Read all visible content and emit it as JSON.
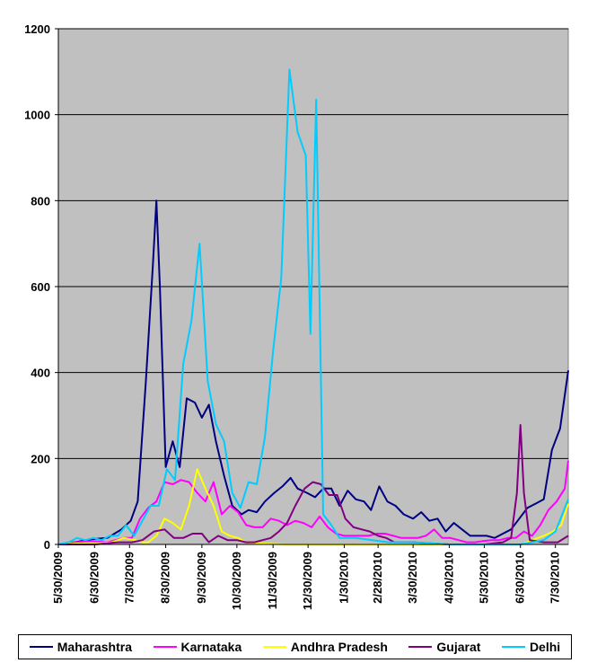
{
  "chart_data": {
    "type": "line",
    "title": "",
    "xlabel": "",
    "ylabel": "",
    "ylim": [
      0,
      1200
    ],
    "yticks": [
      "0",
      "200",
      "400",
      "600",
      "800",
      "1000",
      "1200"
    ],
    "xtick_labels": [
      "5/30/2009",
      "6/30/2009",
      "7/30/2009",
      "8/30/2009",
      "9/30/2009",
      "10/30/2009",
      "11/30/2009",
      "12/30/2009",
      "1/30/2010",
      "2/28/2010",
      "3/30/2010",
      "4/30/2010",
      "5/30/2010",
      "6/30/2010",
      "7/30/2010"
    ],
    "grid": "horizontal",
    "legend_position": "bottom",
    "plot_background": "#C0C0C0",
    "series": [
      {
        "name": "Maharashtra",
        "color": "#000080",
        "points": [
          [
            "2009-05-30",
            0
          ],
          [
            "2009-06-13",
            5
          ],
          [
            "2009-06-27",
            12
          ],
          [
            "2009-07-11",
            15
          ],
          [
            "2009-07-23",
            35
          ],
          [
            "2009-07-31",
            55
          ],
          [
            "2009-08-06",
            100
          ],
          [
            "2009-08-13",
            380
          ],
          [
            "2009-08-19",
            650
          ],
          [
            "2009-08-22",
            800
          ],
          [
            "2009-08-25",
            600
          ],
          [
            "2009-08-30",
            180
          ],
          [
            "2009-09-05",
            240
          ],
          [
            "2009-09-11",
            180
          ],
          [
            "2009-09-17",
            340
          ],
          [
            "2009-09-24",
            330
          ],
          [
            "2009-09-30",
            295
          ],
          [
            "2009-10-06",
            325
          ],
          [
            "2009-10-12",
            240
          ],
          [
            "2009-10-19",
            160
          ],
          [
            "2009-10-26",
            90
          ],
          [
            "2009-11-03",
            70
          ],
          [
            "2009-11-09",
            80
          ],
          [
            "2009-11-16",
            75
          ],
          [
            "2009-11-23",
            100
          ],
          [
            "2009-12-01",
            120
          ],
          [
            "2009-12-08",
            135
          ],
          [
            "2009-12-15",
            155
          ],
          [
            "2009-12-21",
            130
          ],
          [
            "2009-12-29",
            120
          ],
          [
            "2010-01-05",
            110
          ],
          [
            "2010-01-12",
            130
          ],
          [
            "2010-01-19",
            130
          ],
          [
            "2010-01-26",
            90
          ],
          [
            "2010-02-02",
            125
          ],
          [
            "2010-02-09",
            105
          ],
          [
            "2010-02-16",
            100
          ],
          [
            "2010-02-22",
            80
          ],
          [
            "2010-03-01",
            135
          ],
          [
            "2010-03-08",
            100
          ],
          [
            "2010-03-15",
            90
          ],
          [
            "2010-03-22",
            70
          ],
          [
            "2010-03-30",
            60
          ],
          [
            "2010-04-06",
            75
          ],
          [
            "2010-04-13",
            55
          ],
          [
            "2010-04-20",
            60
          ],
          [
            "2010-04-27",
            30
          ],
          [
            "2010-05-04",
            50
          ],
          [
            "2010-05-11",
            35
          ],
          [
            "2010-05-18",
            20
          ],
          [
            "2010-05-25",
            20
          ],
          [
            "2010-06-01",
            20
          ],
          [
            "2010-06-08",
            15
          ],
          [
            "2010-06-15",
            25
          ],
          [
            "2010-06-22",
            35
          ],
          [
            "2010-06-29",
            60
          ],
          [
            "2010-07-06",
            85
          ],
          [
            "2010-07-13",
            95
          ],
          [
            "2010-07-20",
            105
          ],
          [
            "2010-07-27",
            220
          ],
          [
            "2010-08-03",
            270
          ],
          [
            "2010-08-10",
            405
          ]
        ]
      },
      {
        "name": "Karnataka",
        "color": "#FF00FF",
        "points": [
          [
            "2009-05-30",
            0
          ],
          [
            "2009-06-13",
            5
          ],
          [
            "2009-06-27",
            8
          ],
          [
            "2009-07-11",
            5
          ],
          [
            "2009-07-25",
            15
          ],
          [
            "2009-08-01",
            15
          ],
          [
            "2009-08-08",
            60
          ],
          [
            "2009-08-15",
            85
          ],
          [
            "2009-08-22",
            100
          ],
          [
            "2009-08-29",
            145
          ],
          [
            "2009-09-05",
            140
          ],
          [
            "2009-09-12",
            150
          ],
          [
            "2009-09-19",
            145
          ],
          [
            "2009-09-26",
            120
          ],
          [
            "2009-10-03",
            100
          ],
          [
            "2009-10-10",
            145
          ],
          [
            "2009-10-17",
            70
          ],
          [
            "2009-10-24",
            90
          ],
          [
            "2009-10-31",
            75
          ],
          [
            "2009-11-07",
            45
          ],
          [
            "2009-11-14",
            40
          ],
          [
            "2009-11-21",
            40
          ],
          [
            "2009-11-28",
            60
          ],
          [
            "2009-12-05",
            55
          ],
          [
            "2009-12-12",
            45
          ],
          [
            "2009-12-19",
            55
          ],
          [
            "2009-12-26",
            50
          ],
          [
            "2010-01-02",
            40
          ],
          [
            "2010-01-09",
            65
          ],
          [
            "2010-01-16",
            40
          ],
          [
            "2010-01-23",
            25
          ],
          [
            "2010-01-30",
            20
          ],
          [
            "2010-02-06",
            20
          ],
          [
            "2010-02-13",
            20
          ],
          [
            "2010-02-20",
            20
          ],
          [
            "2010-02-27",
            25
          ],
          [
            "2010-03-06",
            25
          ],
          [
            "2010-03-13",
            20
          ],
          [
            "2010-03-20",
            15
          ],
          [
            "2010-03-27",
            15
          ],
          [
            "2010-04-03",
            15
          ],
          [
            "2010-04-10",
            20
          ],
          [
            "2010-04-17",
            35
          ],
          [
            "2010-04-24",
            15
          ],
          [
            "2010-05-01",
            15
          ],
          [
            "2010-05-08",
            10
          ],
          [
            "2010-05-15",
            5
          ],
          [
            "2010-05-22",
            5
          ],
          [
            "2010-05-29",
            8
          ],
          [
            "2010-06-05",
            10
          ],
          [
            "2010-06-12",
            10
          ],
          [
            "2010-06-19",
            15
          ],
          [
            "2010-06-26",
            15
          ],
          [
            "2010-07-03",
            30
          ],
          [
            "2010-07-10",
            20
          ],
          [
            "2010-07-17",
            45
          ],
          [
            "2010-07-24",
            80
          ],
          [
            "2010-07-31",
            100
          ],
          [
            "2010-08-07",
            130
          ],
          [
            "2010-08-10",
            195
          ]
        ]
      },
      {
        "name": "Andhra Pradesh",
        "color": "#FFFF00",
        "points": [
          [
            "2009-05-30",
            0
          ],
          [
            "2009-06-15",
            2
          ],
          [
            "2009-07-01",
            3
          ],
          [
            "2009-07-15",
            5
          ],
          [
            "2009-07-25",
            15
          ],
          [
            "2009-08-04",
            10
          ],
          [
            "2009-08-10",
            5
          ],
          [
            "2009-08-15",
            5
          ],
          [
            "2009-08-22",
            20
          ],
          [
            "2009-08-29",
            60
          ],
          [
            "2009-09-05",
            50
          ],
          [
            "2009-09-12",
            35
          ],
          [
            "2009-09-19",
            90
          ],
          [
            "2009-09-26",
            175
          ],
          [
            "2009-10-03",
            130
          ],
          [
            "2009-10-10",
            90
          ],
          [
            "2009-10-17",
            30
          ],
          [
            "2009-10-24",
            20
          ],
          [
            "2009-10-31",
            15
          ],
          [
            "2009-11-07",
            5
          ],
          [
            "2009-11-21",
            2
          ],
          [
            "2009-12-10",
            0
          ],
          [
            "2010-01-30",
            0
          ],
          [
            "2010-05-30",
            0
          ],
          [
            "2010-07-01",
            0
          ],
          [
            "2010-07-10",
            10
          ],
          [
            "2010-07-20",
            20
          ],
          [
            "2010-07-28",
            30
          ],
          [
            "2010-08-04",
            45
          ],
          [
            "2010-08-10",
            95
          ]
        ]
      },
      {
        "name": "Gujarat",
        "color": "#800080",
        "points": [
          [
            "2009-05-30",
            0
          ],
          [
            "2009-07-01",
            0
          ],
          [
            "2009-07-20",
            5
          ],
          [
            "2009-08-01",
            5
          ],
          [
            "2009-08-10",
            10
          ],
          [
            "2009-08-20",
            30
          ],
          [
            "2009-08-29",
            35
          ],
          [
            "2009-09-06",
            15
          ],
          [
            "2009-09-14",
            15
          ],
          [
            "2009-09-22",
            25
          ],
          [
            "2009-09-30",
            25
          ],
          [
            "2009-10-06",
            5
          ],
          [
            "2009-10-14",
            20
          ],
          [
            "2009-10-22",
            10
          ],
          [
            "2009-10-30",
            10
          ],
          [
            "2009-11-07",
            5
          ],
          [
            "2009-11-14",
            5
          ],
          [
            "2009-11-21",
            10
          ],
          [
            "2009-11-28",
            15
          ],
          [
            "2009-12-05",
            30
          ],
          [
            "2009-12-12",
            50
          ],
          [
            "2009-12-19",
            90
          ],
          [
            "2009-12-27",
            130
          ],
          [
            "2010-01-03",
            145
          ],
          [
            "2010-01-10",
            140
          ],
          [
            "2010-01-17",
            115
          ],
          [
            "2010-01-24",
            115
          ],
          [
            "2010-01-31",
            60
          ],
          [
            "2010-02-07",
            40
          ],
          [
            "2010-02-14",
            35
          ],
          [
            "2010-02-21",
            30
          ],
          [
            "2010-02-28",
            20
          ],
          [
            "2010-03-07",
            15
          ],
          [
            "2010-03-14",
            5
          ],
          [
            "2010-03-30",
            5
          ],
          [
            "2010-04-30",
            0
          ],
          [
            "2010-05-30",
            0
          ],
          [
            "2010-06-15",
            5
          ],
          [
            "2010-06-22",
            15
          ],
          [
            "2010-06-27",
            120
          ],
          [
            "2010-06-30",
            278
          ],
          [
            "2010-07-03",
            120
          ],
          [
            "2010-07-08",
            10
          ],
          [
            "2010-07-20",
            5
          ],
          [
            "2010-08-01",
            5
          ],
          [
            "2010-08-10",
            20
          ]
        ]
      },
      {
        "name": "Delhi",
        "color": "#00CCFF",
        "points": [
          [
            "2009-05-30",
            0
          ],
          [
            "2009-06-08",
            5
          ],
          [
            "2009-06-15",
            15
          ],
          [
            "2009-06-22",
            10
          ],
          [
            "2009-06-29",
            15
          ],
          [
            "2009-07-06",
            10
          ],
          [
            "2009-07-13",
            20
          ],
          [
            "2009-07-20",
            20
          ],
          [
            "2009-07-27",
            45
          ],
          [
            "2009-08-03",
            20
          ],
          [
            "2009-08-10",
            55
          ],
          [
            "2009-08-17",
            90
          ],
          [
            "2009-08-24",
            90
          ],
          [
            "2009-08-31",
            175
          ],
          [
            "2009-09-07",
            150
          ],
          [
            "2009-09-14",
            420
          ],
          [
            "2009-09-21",
            520
          ],
          [
            "2009-09-28",
            700
          ],
          [
            "2009-10-05",
            380
          ],
          [
            "2009-10-12",
            280
          ],
          [
            "2009-10-19",
            240
          ],
          [
            "2009-10-26",
            120
          ],
          [
            "2009-11-02",
            85
          ],
          [
            "2009-11-09",
            145
          ],
          [
            "2009-11-16",
            140
          ],
          [
            "2009-11-23",
            250
          ],
          [
            "2009-11-30",
            450
          ],
          [
            "2009-12-07",
            620
          ],
          [
            "2009-12-14",
            1105
          ],
          [
            "2009-12-21",
            960
          ],
          [
            "2009-12-28",
            905
          ],
          [
            "2010-01-01",
            490
          ],
          [
            "2010-01-06",
            1035
          ],
          [
            "2010-01-12",
            70
          ],
          [
            "2010-01-19",
            45
          ],
          [
            "2010-01-26",
            15
          ],
          [
            "2010-02-09",
            15
          ],
          [
            "2010-02-23",
            10
          ],
          [
            "2010-03-09",
            5
          ],
          [
            "2010-03-30",
            5
          ],
          [
            "2010-04-30",
            0
          ],
          [
            "2010-05-30",
            0
          ],
          [
            "2010-06-30",
            0
          ],
          [
            "2010-07-10",
            5
          ],
          [
            "2010-07-20",
            10
          ],
          [
            "2010-07-30",
            30
          ],
          [
            "2010-08-10",
            105
          ]
        ]
      }
    ]
  }
}
